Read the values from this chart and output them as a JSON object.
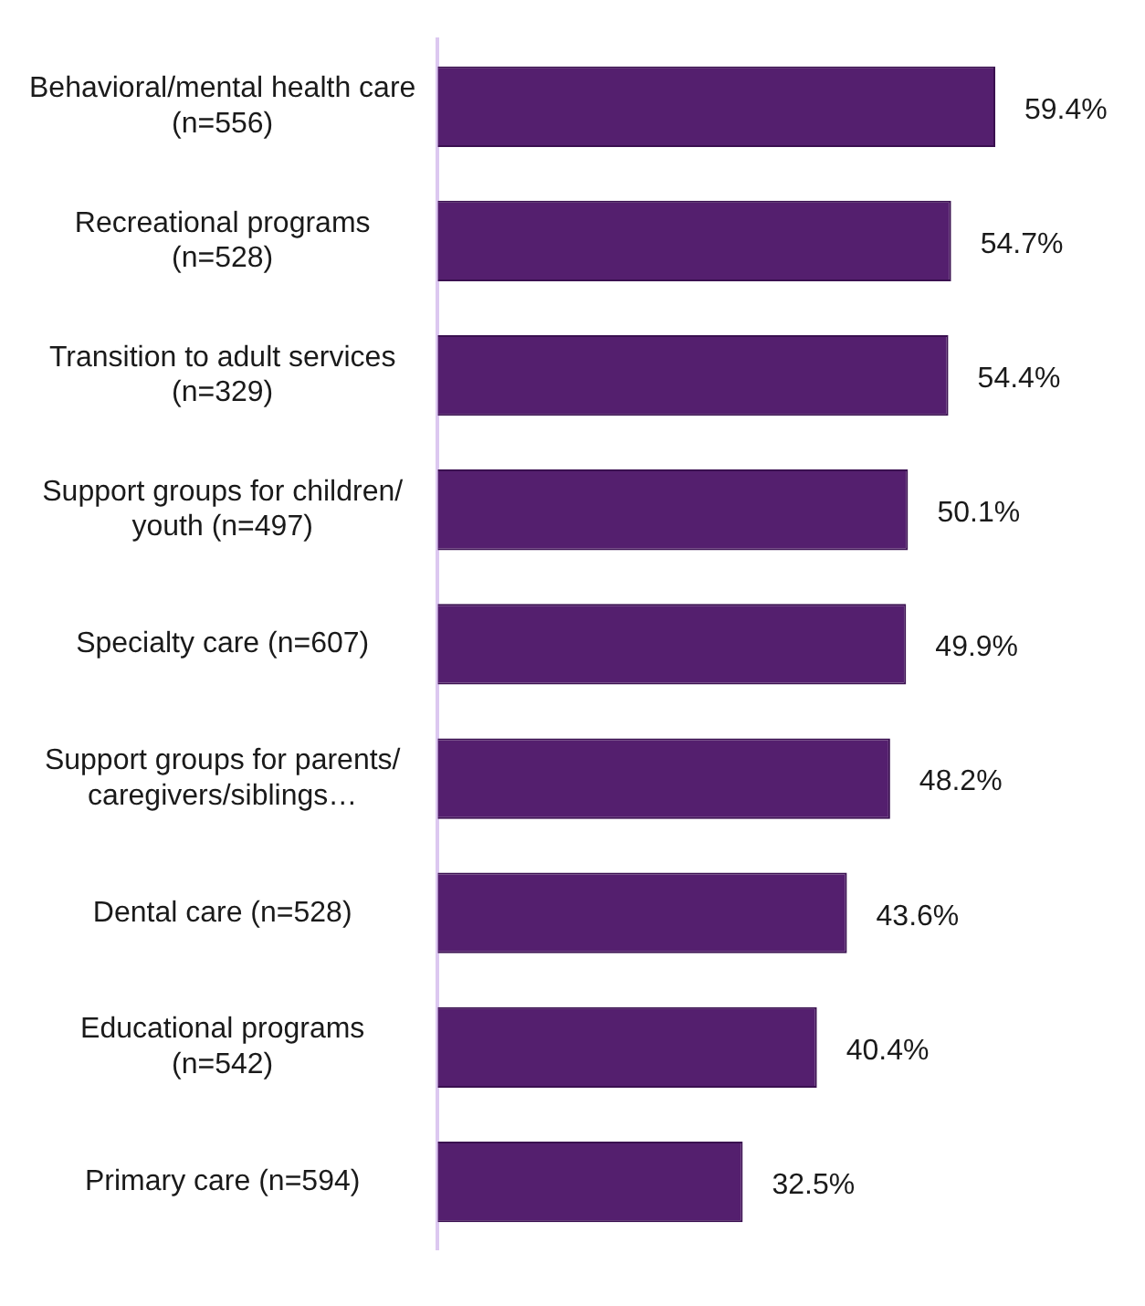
{
  "chart_data": {
    "type": "bar",
    "orientation": "horizontal",
    "categories": [
      "Behavioral/mental health care (n=556)",
      "Recreational programs (n=528)",
      "Transition to adult services (n=329)",
      "Support groups for children/youth (n=497)",
      "Specialty care (n=607)",
      "Support groups for parents/caregivers/siblings…",
      "Dental care (n=528)",
      "Educational programs (n=542)",
      "Primary care (n=594)"
    ],
    "values": [
      59.4,
      54.7,
      54.4,
      50.1,
      49.9,
      48.2,
      43.6,
      40.4,
      32.5
    ],
    "value_labels": [
      "59.4%",
      "54.7%",
      "54.4%",
      "50.1%",
      "49.9%",
      "48.2%",
      "43.6%",
      "40.4%",
      "32.5%"
    ],
    "color": "#541f6e",
    "legend": false
  }
}
